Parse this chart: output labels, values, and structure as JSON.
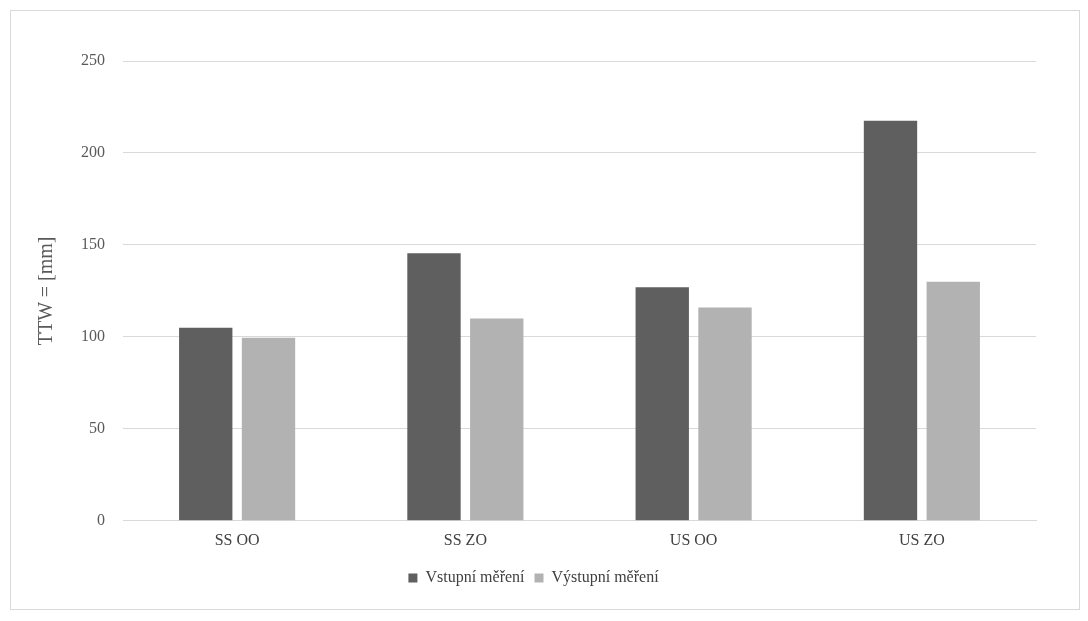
{
  "chart_data": {
    "type": "bar",
    "ylabel": "TTW = [mm]",
    "categories": [
      "SS OO",
      "SS ZO",
      "US OO",
      "US ZO"
    ],
    "series": [
      {
        "name": "Vstupní měření",
        "color": "#5f5f5f",
        "values": [
          105,
          145.5,
          127,
          217.5
        ]
      },
      {
        "name": "Výstupní měření",
        "color": "#b2b2b2",
        "values": [
          99.5,
          110,
          116,
          130
        ]
      }
    ],
    "ylim": [
      0,
      250
    ],
    "yticks": [
      0,
      50,
      100,
      150,
      200,
      250
    ],
    "grid": "y",
    "legend": "bottom"
  }
}
